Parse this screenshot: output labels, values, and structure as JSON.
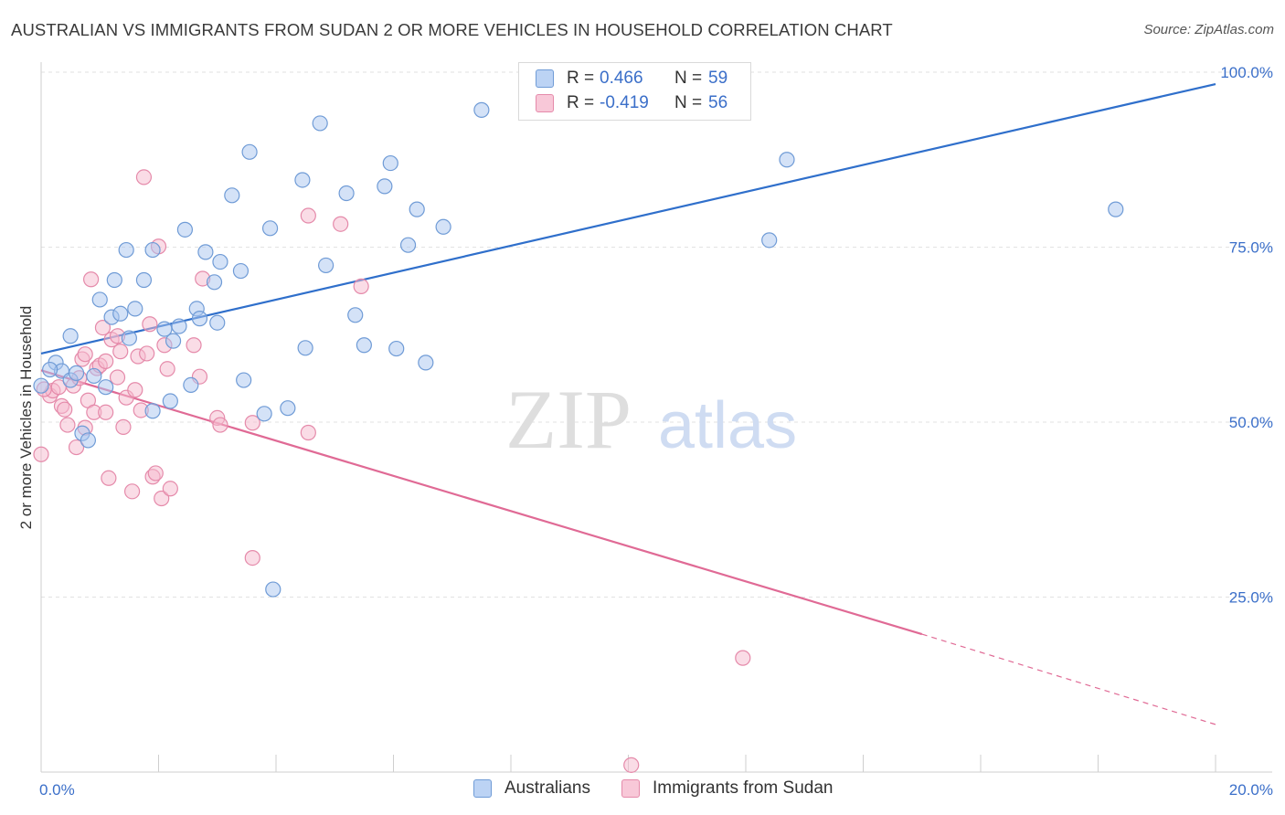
{
  "header": {
    "title": "AUSTRALIAN VS IMMIGRANTS FROM SUDAN 2 OR MORE VEHICLES IN HOUSEHOLD CORRELATION CHART",
    "source": "Source: ZipAtlas.com"
  },
  "watermark": {
    "zip": "ZIP",
    "atlas": "atlas"
  },
  "legend": {
    "rows": [
      {
        "r_label": "R =",
        "r_value": "0.466",
        "n_label": "N =",
        "n_value": "59"
      },
      {
        "r_label": "R =",
        "r_value": "-0.419",
        "n_label": "N =",
        "n_value": "56"
      }
    ]
  },
  "bottom_legend": {
    "series1": "Australians",
    "series2": "Immigrants from Sudan"
  },
  "colors": {
    "blue_fill": "#aac6ef",
    "blue_stroke": "#6f9bd6",
    "blue_line": "#2f6fcb",
    "pink_fill": "#f5b9cd",
    "pink_stroke": "#e58aaa",
    "pink_line": "#e06a95",
    "axis_label": "#3b6fc9",
    "grid": "#e2e2e2"
  },
  "chart_data": {
    "type": "scatter",
    "title": "AUSTRALIAN VS IMMIGRANTS FROM SUDAN 2 OR MORE VEHICLES IN HOUSEHOLD CORRELATION CHART",
    "xlabel": "",
    "ylabel": "2 or more Vehicles in Household",
    "xlim": [
      0,
      20
    ],
    "ylim": [
      0,
      100
    ],
    "x_tick_labels": [
      "0.0%",
      "20.0%"
    ],
    "y_ticks": [
      25,
      50,
      75,
      100
    ],
    "y_tick_labels": [
      "25.0%",
      "50.0%",
      "75.0%",
      "100.0%"
    ],
    "grid": true,
    "legend_position": "top-center",
    "series": [
      {
        "name": "Australians",
        "r": 0.466,
        "n": 59,
        "trend": {
          "x": [
            0,
            20
          ],
          "y": [
            59.8,
            98.3
          ]
        },
        "points": [
          [
            0.0,
            55.2
          ],
          [
            0.25,
            58.5
          ],
          [
            0.35,
            57.3
          ],
          [
            0.5,
            62.3
          ],
          [
            0.5,
            56.0
          ],
          [
            0.7,
            48.4
          ],
          [
            0.8,
            47.4
          ],
          [
            0.9,
            56.6
          ],
          [
            1.0,
            67.5
          ],
          [
            1.1,
            55.0
          ],
          [
            1.2,
            65.0
          ],
          [
            1.25,
            70.3
          ],
          [
            1.35,
            65.5
          ],
          [
            1.45,
            74.6
          ],
          [
            1.5,
            62.0
          ],
          [
            1.6,
            66.2
          ],
          [
            1.75,
            70.3
          ],
          [
            1.9,
            51.6
          ],
          [
            1.9,
            74.6
          ],
          [
            2.1,
            63.3
          ],
          [
            2.2,
            53.0
          ],
          [
            2.25,
            61.6
          ],
          [
            2.35,
            63.7
          ],
          [
            2.45,
            77.5
          ],
          [
            2.55,
            55.3
          ],
          [
            2.65,
            66.2
          ],
          [
            2.7,
            64.8
          ],
          [
            2.8,
            74.3
          ],
          [
            2.95,
            70.0
          ],
          [
            3.0,
            64.2
          ],
          [
            3.05,
            72.9
          ],
          [
            3.25,
            82.4
          ],
          [
            3.4,
            71.6
          ],
          [
            3.45,
            56.0
          ],
          [
            3.55,
            88.6
          ],
          [
            3.8,
            51.2
          ],
          [
            3.9,
            77.7
          ],
          [
            3.95,
            26.1
          ],
          [
            4.2,
            52.0
          ],
          [
            4.45,
            84.6
          ],
          [
            4.5,
            60.6
          ],
          [
            4.75,
            92.7
          ],
          [
            4.85,
            72.4
          ],
          [
            5.2,
            82.7
          ],
          [
            5.35,
            65.3
          ],
          [
            5.5,
            61.0
          ],
          [
            5.85,
            83.7
          ],
          [
            5.95,
            87.0
          ],
          [
            6.05,
            60.5
          ],
          [
            6.25,
            75.3
          ],
          [
            6.4,
            80.4
          ],
          [
            6.55,
            58.5
          ],
          [
            6.85,
            77.9
          ],
          [
            7.5,
            94.6
          ],
          [
            12.4,
            76.0
          ],
          [
            12.7,
            87.5
          ],
          [
            18.3,
            80.4
          ],
          [
            0.15,
            57.5
          ],
          [
            0.6,
            57.0
          ]
        ]
      },
      {
        "name": "Immigrants from Sudan",
        "r": -0.419,
        "n": 56,
        "trend": {
          "x": [
            0,
            15
          ],
          "y": [
            57.4,
            19.7
          ]
        },
        "trend_dashed": {
          "x": [
            15,
            20
          ],
          "y": [
            19.7,
            6.8
          ]
        },
        "points": [
          [
            0.0,
            45.4
          ],
          [
            0.15,
            53.8
          ],
          [
            0.2,
            54.5
          ],
          [
            0.3,
            55.0
          ],
          [
            0.35,
            52.3
          ],
          [
            0.4,
            51.8
          ],
          [
            0.45,
            49.6
          ],
          [
            0.55,
            55.2
          ],
          [
            0.6,
            46.4
          ],
          [
            0.65,
            56.3
          ],
          [
            0.7,
            59.0
          ],
          [
            0.75,
            49.2
          ],
          [
            0.75,
            59.7
          ],
          [
            0.8,
            53.1
          ],
          [
            0.85,
            70.4
          ],
          [
            0.9,
            51.4
          ],
          [
            0.95,
            57.7
          ],
          [
            1.0,
            58.1
          ],
          [
            1.05,
            63.5
          ],
          [
            1.1,
            58.7
          ],
          [
            1.1,
            51.4
          ],
          [
            1.15,
            42.0
          ],
          [
            1.2,
            61.8
          ],
          [
            1.3,
            62.3
          ],
          [
            1.3,
            56.4
          ],
          [
            1.35,
            60.1
          ],
          [
            1.4,
            49.3
          ],
          [
            1.45,
            53.5
          ],
          [
            1.55,
            40.1
          ],
          [
            1.6,
            54.6
          ],
          [
            1.65,
            59.4
          ],
          [
            1.7,
            51.7
          ],
          [
            1.75,
            85.0
          ],
          [
            1.8,
            59.8
          ],
          [
            1.85,
            64.0
          ],
          [
            1.9,
            42.2
          ],
          [
            1.95,
            42.7
          ],
          [
            2.0,
            75.1
          ],
          [
            2.05,
            39.1
          ],
          [
            2.1,
            61.0
          ],
          [
            2.15,
            57.6
          ],
          [
            2.2,
            40.5
          ],
          [
            2.6,
            61.0
          ],
          [
            2.7,
            56.5
          ],
          [
            2.75,
            70.5
          ],
          [
            3.0,
            50.6
          ],
          [
            3.05,
            49.6
          ],
          [
            3.6,
            30.6
          ],
          [
            3.6,
            49.9
          ],
          [
            4.55,
            48.5
          ],
          [
            4.55,
            79.5
          ],
          [
            5.1,
            78.3
          ],
          [
            5.45,
            69.4
          ],
          [
            10.05,
            1.0
          ],
          [
            11.95,
            16.3
          ],
          [
            0.05,
            54.7
          ]
        ]
      }
    ]
  }
}
